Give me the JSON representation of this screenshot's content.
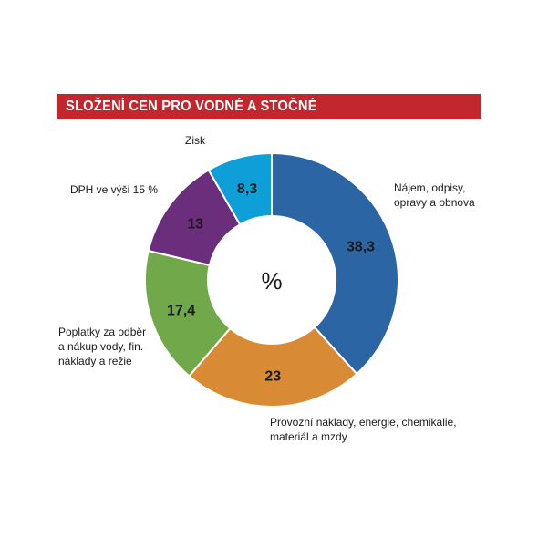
{
  "chart_data": {
    "type": "pie",
    "donut": true,
    "title": "SLOŽENÍ CEN PRO VODNÉ A STOČNÉ",
    "center_label": "%",
    "title_bar_color": "#c1272d",
    "slices": [
      {
        "label_lines": [
          "Nájem, odpisy,",
          "opravy a obnova"
        ],
        "value": 38.3,
        "value_text": "38,3",
        "color": "#2c65a4"
      },
      {
        "label_lines": [
          "Provozní náklady, energie, chemikálie,",
          "materiál a mzdy"
        ],
        "value": 23,
        "value_text": "23",
        "color": "#d98a35"
      },
      {
        "label_lines": [
          "Poplatky za odběr",
          "a nákup vody, fin.",
          "náklady a režie"
        ],
        "value": 17.4,
        "value_text": "17,4",
        "color": "#70a84a"
      },
      {
        "label_lines": [
          "DPH ve výši 15 %"
        ],
        "value": 13,
        "value_text": "13",
        "color": "#6a2e7c"
      },
      {
        "label_lines": [
          "Zisk"
        ],
        "value": 8.3,
        "value_text": "8,3",
        "color": "#0f9fd8"
      }
    ]
  }
}
